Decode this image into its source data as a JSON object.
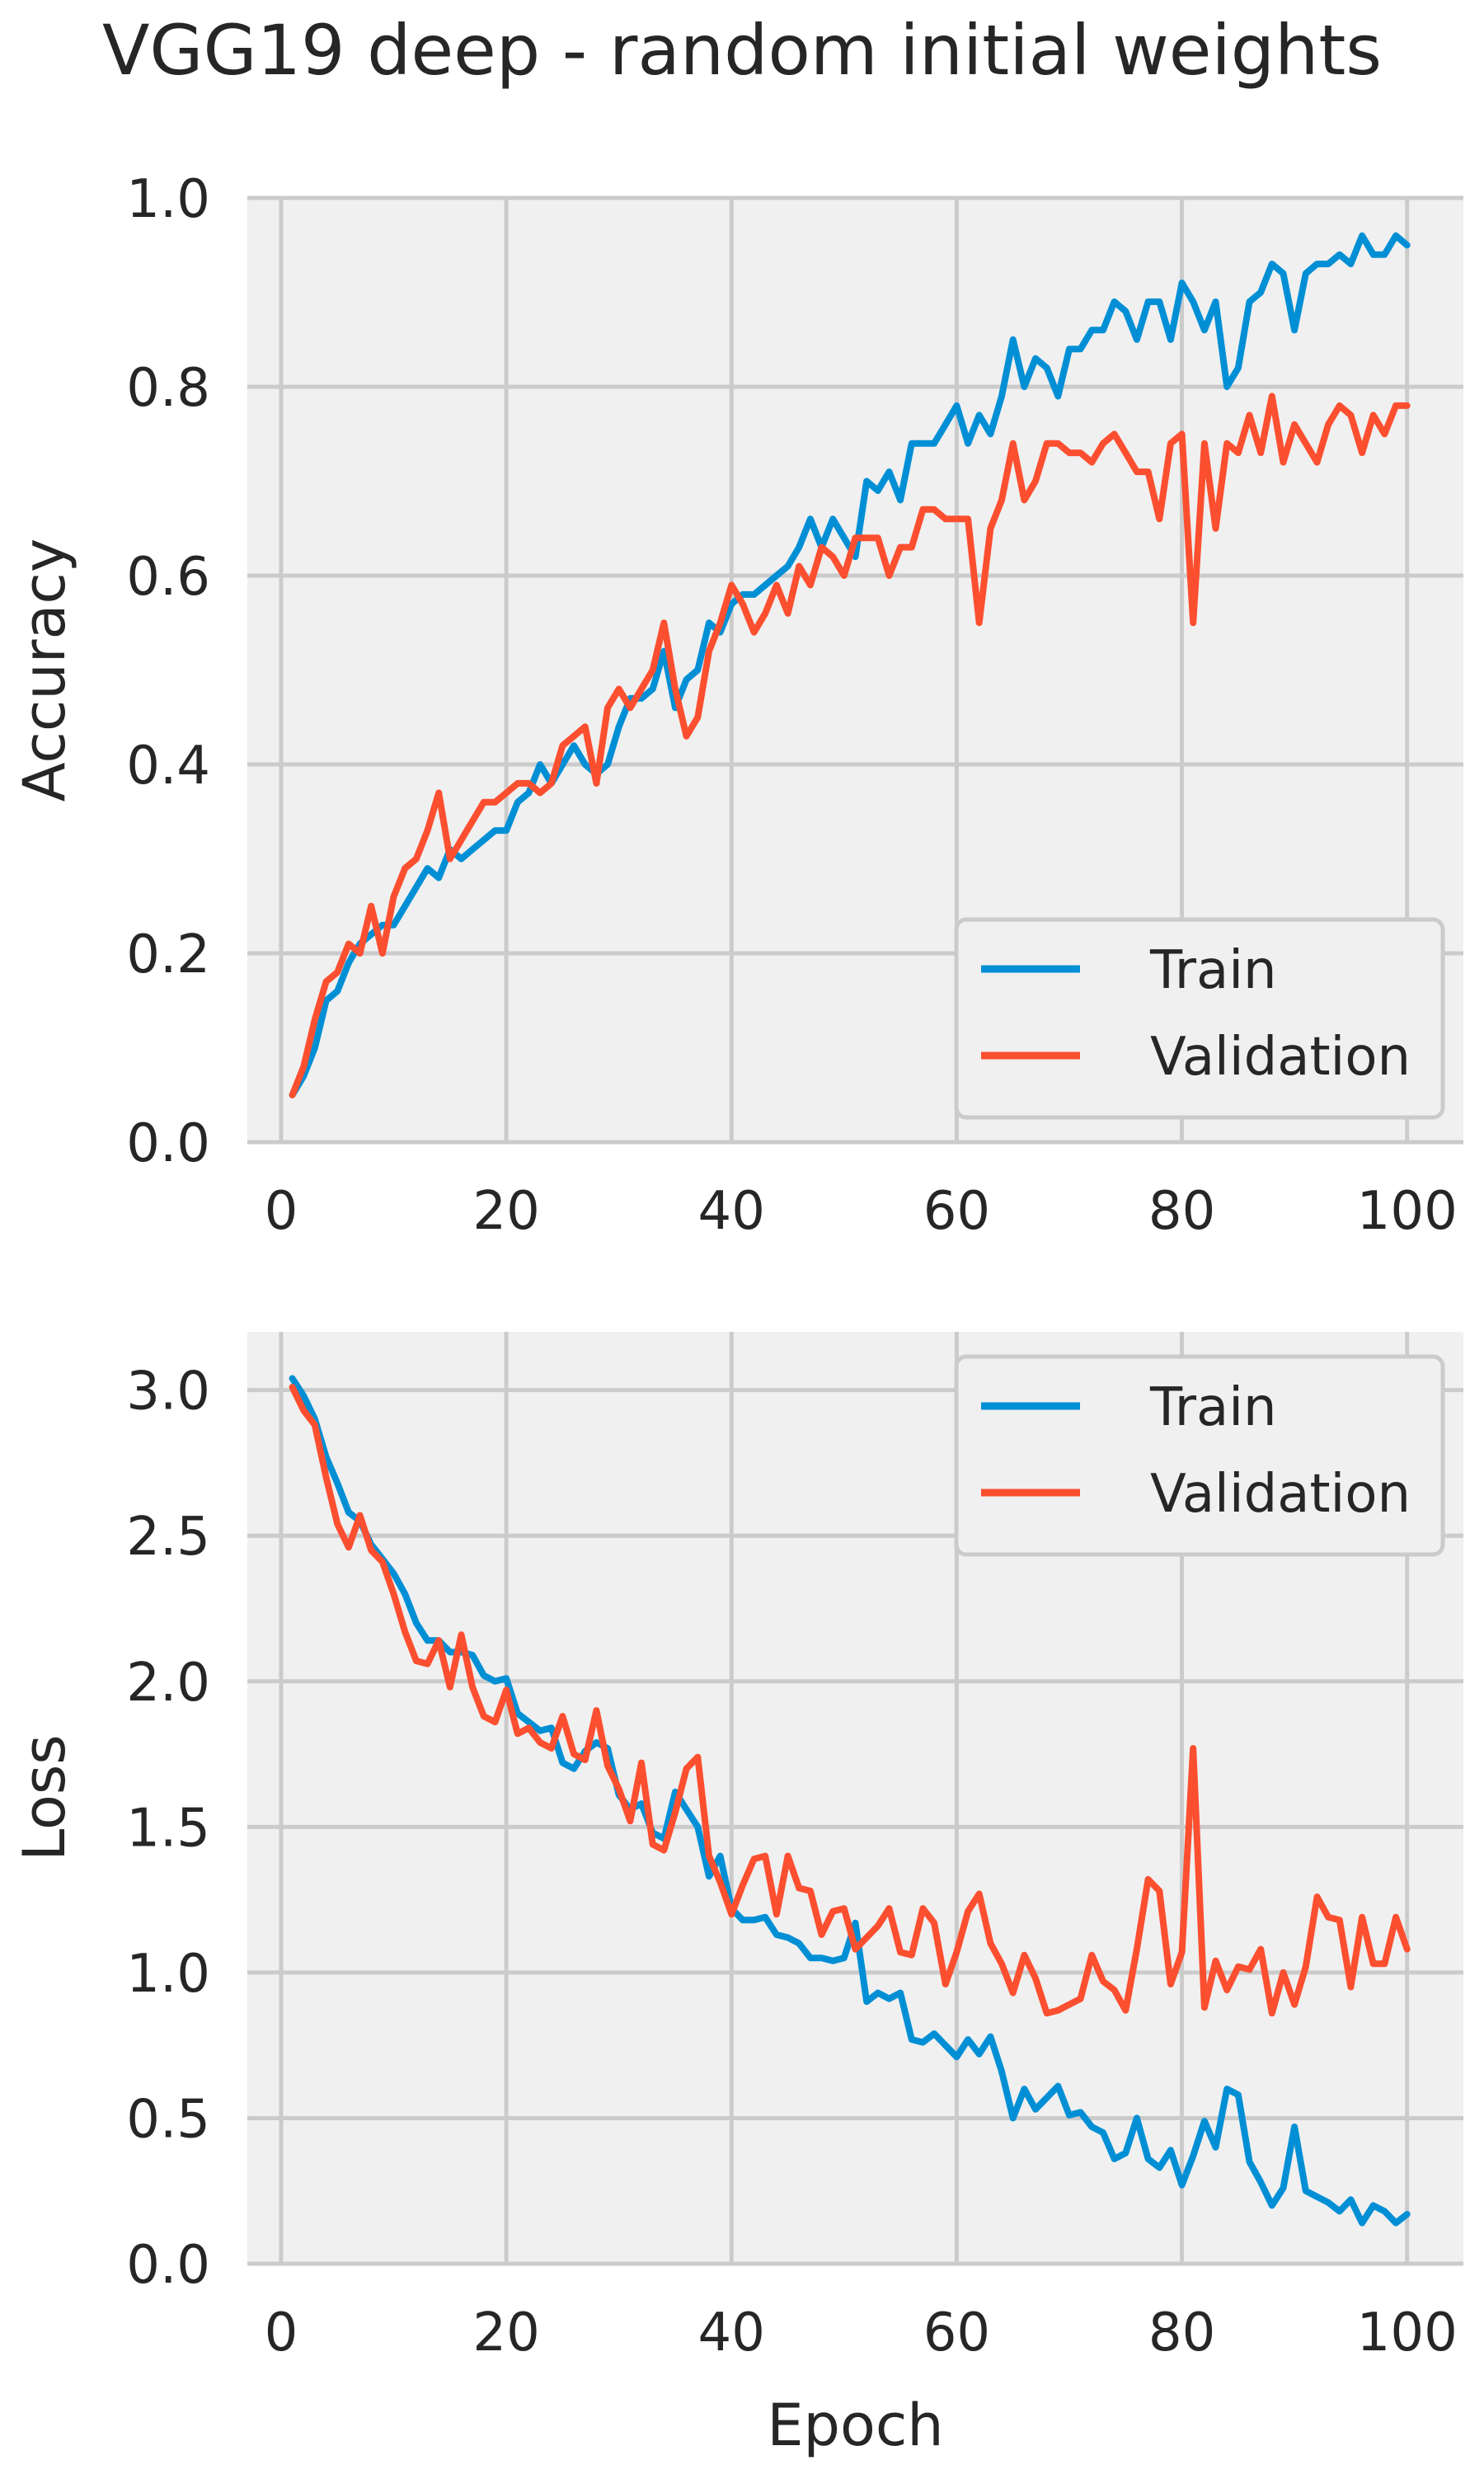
{
  "figure_title": "VGG19 deep - random initial weights",
  "colors": {
    "train": "#008fd5",
    "validation": "#fc4f30",
    "panel_bg": "#f0f0f0",
    "grid": "#cbcbcb",
    "text": "#262626"
  },
  "chart_data": [
    {
      "type": "line",
      "title": "VGG19 deep - random initial weights",
      "xlabel": "",
      "ylabel": "Accuracy",
      "xlim": [
        -3,
        105
      ],
      "ylim": [
        0,
        1
      ],
      "xticks": [
        0,
        20,
        40,
        60,
        80,
        100
      ],
      "xtick_labels": [
        "0",
        "20",
        "40",
        "60",
        "80",
        "100"
      ],
      "yticks": [
        0,
        0.2,
        0.4,
        0.6,
        0.8,
        1.0
      ],
      "ytick_labels": [
        "0.0",
        "0.2",
        "0.4",
        "0.6",
        "0.8",
        "1.0"
      ],
      "grid": true,
      "legend": "lower-right",
      "x": [
        1,
        2,
        3,
        4,
        5,
        6,
        7,
        8,
        9,
        10,
        11,
        12,
        13,
        14,
        15,
        16,
        17,
        18,
        19,
        20,
        21,
        22,
        23,
        24,
        25,
        26,
        27,
        28,
        29,
        30,
        31,
        32,
        33,
        34,
        35,
        36,
        37,
        38,
        39,
        40,
        41,
        42,
        43,
        44,
        45,
        46,
        47,
        48,
        49,
        50,
        51,
        52,
        53,
        54,
        55,
        56,
        57,
        58,
        59,
        60,
        61,
        62,
        63,
        64,
        65,
        66,
        67,
        68,
        69,
        70,
        71,
        72,
        73,
        74,
        75,
        76,
        77,
        78,
        79,
        80,
        81,
        82,
        83,
        84,
        85,
        86,
        87,
        88,
        89,
        90,
        91,
        92,
        93,
        94,
        95,
        96,
        97,
        98,
        99,
        100
      ],
      "series": [
        {
          "name": "Train",
          "color": "#008fd5",
          "values": [
            0.05,
            0.07,
            0.1,
            0.15,
            0.16,
            0.19,
            0.21,
            0.22,
            0.23,
            0.23,
            0.25,
            0.27,
            0.29,
            0.28,
            0.31,
            0.3,
            0.31,
            0.32,
            0.33,
            0.33,
            0.36,
            0.37,
            0.4,
            0.38,
            0.4,
            0.42,
            0.4,
            0.39,
            0.4,
            0.44,
            0.47,
            0.47,
            0.48,
            0.52,
            0.46,
            0.49,
            0.5,
            0.55,
            0.54,
            0.57,
            0.58,
            0.58,
            0.59,
            0.6,
            0.61,
            0.63,
            0.66,
            0.63,
            0.66,
            0.64,
            0.62,
            0.7,
            0.69,
            0.71,
            0.68,
            0.74,
            0.74,
            0.74,
            0.76,
            0.78,
            0.74,
            0.77,
            0.75,
            0.79,
            0.85,
            0.8,
            0.83,
            0.82,
            0.79,
            0.84,
            0.84,
            0.86,
            0.86,
            0.89,
            0.88,
            0.85,
            0.89,
            0.89,
            0.85,
            0.91,
            0.89,
            0.86,
            0.89,
            0.8,
            0.82,
            0.89,
            0.9,
            0.93,
            0.92,
            0.86,
            0.92,
            0.93,
            0.93,
            0.94,
            0.93,
            0.96,
            0.94,
            0.94,
            0.96,
            0.95
          ]
        },
        {
          "name": "Validation",
          "color": "#fc4f30",
          "values": [
            0.05,
            0.08,
            0.13,
            0.17,
            0.18,
            0.21,
            0.2,
            0.25,
            0.2,
            0.26,
            0.29,
            0.3,
            0.33,
            0.37,
            0.3,
            0.32,
            0.34,
            0.36,
            0.36,
            0.37,
            0.38,
            0.38,
            0.37,
            0.38,
            0.42,
            0.43,
            0.44,
            0.38,
            0.46,
            0.48,
            0.46,
            0.48,
            0.5,
            0.55,
            0.48,
            0.43,
            0.45,
            0.52,
            0.55,
            0.59,
            0.57,
            0.54,
            0.56,
            0.59,
            0.56,
            0.61,
            0.59,
            0.63,
            0.62,
            0.6,
            0.64,
            0.64,
            0.64,
            0.6,
            0.63,
            0.63,
            0.67,
            0.67,
            0.66,
            0.66,
            0.66,
            0.55,
            0.65,
            0.68,
            0.74,
            0.68,
            0.7,
            0.74,
            0.74,
            0.73,
            0.73,
            0.72,
            0.74,
            0.75,
            0.73,
            0.71,
            0.71,
            0.66,
            0.74,
            0.75,
            0.55,
            0.74,
            0.65,
            0.74,
            0.73,
            0.77,
            0.73,
            0.79,
            0.72,
            0.76,
            0.74,
            0.72,
            0.76,
            0.78,
            0.77,
            0.73,
            0.77,
            0.75,
            0.78,
            0.78
          ]
        }
      ]
    },
    {
      "type": "line",
      "title": "",
      "xlabel": "Epoch",
      "ylabel": "Loss",
      "xlim": [
        -3,
        105
      ],
      "ylim": [
        0,
        3.2
      ],
      "xticks": [
        0,
        20,
        40,
        60,
        80,
        100
      ],
      "xtick_labels": [
        "0",
        "20",
        "40",
        "60",
        "80",
        "100"
      ],
      "yticks": [
        0,
        0.5,
        1.0,
        1.5,
        2.0,
        2.5,
        3.0
      ],
      "ytick_labels": [
        "0.0",
        "0.5",
        "1.0",
        "1.5",
        "2.0",
        "2.5",
        "3.0"
      ],
      "grid": true,
      "legend": "top-right",
      "x": [
        1,
        2,
        3,
        4,
        5,
        6,
        7,
        8,
        9,
        10,
        11,
        12,
        13,
        14,
        15,
        16,
        17,
        18,
        19,
        20,
        21,
        22,
        23,
        24,
        25,
        26,
        27,
        28,
        29,
        30,
        31,
        32,
        33,
        34,
        35,
        36,
        37,
        38,
        39,
        40,
        41,
        42,
        43,
        44,
        45,
        46,
        47,
        48,
        49,
        50,
        51,
        52,
        53,
        54,
        55,
        56,
        57,
        58,
        59,
        60,
        61,
        62,
        63,
        64,
        65,
        66,
        67,
        68,
        69,
        70,
        71,
        72,
        73,
        74,
        75,
        76,
        77,
        78,
        79,
        80,
        81,
        82,
        83,
        84,
        85,
        86,
        87,
        88,
        89,
        90,
        91,
        92,
        93,
        94,
        95,
        96,
        97,
        98,
        99,
        100
      ],
      "series": [
        {
          "name": "Train",
          "color": "#008fd5",
          "values": [
            3.04,
            2.98,
            2.9,
            2.77,
            2.68,
            2.58,
            2.55,
            2.47,
            2.42,
            2.37,
            2.3,
            2.2,
            2.14,
            2.14,
            2.1,
            2.1,
            2.09,
            2.02,
            2.0,
            2.01,
            1.89,
            1.86,
            1.83,
            1.84,
            1.72,
            1.7,
            1.76,
            1.79,
            1.77,
            1.61,
            1.56,
            1.58,
            1.48,
            1.46,
            1.62,
            1.56,
            1.5,
            1.33,
            1.4,
            1.22,
            1.18,
            1.18,
            1.19,
            1.13,
            1.12,
            1.1,
            1.05,
            1.05,
            1.04,
            1.05,
            1.17,
            0.9,
            0.93,
            0.91,
            0.93,
            0.77,
            0.76,
            0.79,
            0.75,
            0.71,
            0.77,
            0.72,
            0.78,
            0.66,
            0.5,
            0.6,
            0.53,
            0.57,
            0.61,
            0.51,
            0.52,
            0.47,
            0.45,
            0.36,
            0.38,
            0.5,
            0.36,
            0.33,
            0.39,
            0.27,
            0.37,
            0.49,
            0.4,
            0.6,
            0.58,
            0.35,
            0.28,
            0.2,
            0.26,
            0.47,
            0.25,
            0.23,
            0.21,
            0.18,
            0.22,
            0.14,
            0.2,
            0.18,
            0.14,
            0.17
          ]
        },
        {
          "name": "Validation",
          "color": "#fc4f30",
          "values": [
            3.01,
            2.93,
            2.88,
            2.7,
            2.54,
            2.46,
            2.57,
            2.45,
            2.41,
            2.3,
            2.17,
            2.07,
            2.06,
            2.14,
            1.98,
            2.16,
            1.98,
            1.88,
            1.86,
            1.97,
            1.82,
            1.84,
            1.79,
            1.77,
            1.88,
            1.75,
            1.73,
            1.9,
            1.71,
            1.63,
            1.52,
            1.72,
            1.44,
            1.42,
            1.55,
            1.7,
            1.74,
            1.4,
            1.31,
            1.2,
            1.3,
            1.39,
            1.4,
            1.2,
            1.4,
            1.29,
            1.28,
            1.13,
            1.21,
            1.22,
            1.08,
            1.12,
            1.16,
            1.22,
            1.07,
            1.06,
            1.22,
            1.17,
            0.96,
            1.07,
            1.21,
            1.27,
            1.1,
            1.03,
            0.93,
            1.06,
            0.98,
            0.86,
            0.87,
            0.89,
            0.91,
            1.06,
            0.97,
            0.94,
            0.87,
            1.08,
            1.32,
            1.28,
            0.96,
            1.07,
            1.77,
            0.88,
            1.04,
            0.94,
            1.02,
            1.01,
            1.08,
            0.86,
            1.0,
            0.89,
            1.02,
            1.26,
            1.19,
            1.18,
            0.95,
            1.19,
            1.03,
            1.03,
            1.19,
            1.08
          ]
        }
      ]
    }
  ]
}
